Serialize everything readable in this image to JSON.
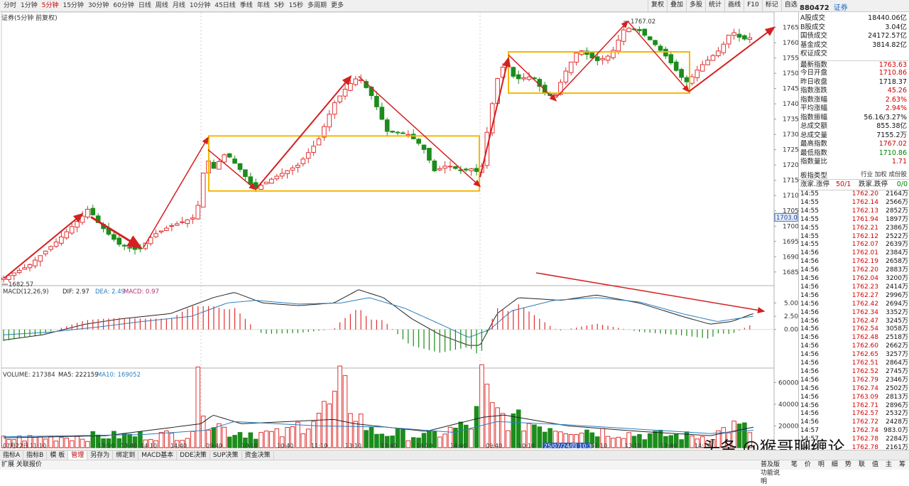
{
  "toolbar": {
    "periods": [
      "分时",
      "1分钟",
      "5分钟",
      "15分钟",
      "30分钟",
      "60分钟",
      "日线",
      "周线",
      "月线",
      "10分钟",
      "45日线",
      "季线",
      "年线",
      "5秒",
      "15秒",
      "多周期",
      "更多"
    ],
    "active_period": "5分钟",
    "tools": [
      "复权",
      "叠加",
      "多股",
      "统计",
      "画线",
      "F10",
      "标记",
      "自选"
    ],
    "subtitle": "证券(5分钟 前复权)"
  },
  "stock": {
    "code": "880472",
    "name": "证券"
  },
  "info": [
    {
      "k": "A股成交",
      "v": "18440.06亿",
      "c": "normal"
    },
    {
      "k": "B股成交",
      "v": "3.04亿",
      "c": "normal"
    },
    {
      "k": "国债成交",
      "v": "24172.57亿",
      "c": "normal"
    },
    {
      "k": "基金成交",
      "v": "3814.82亿",
      "c": "normal"
    },
    {
      "k": "权证成交",
      "v": "",
      "c": "normal"
    },
    {
      "k": "最新指数",
      "v": "1763.63",
      "c": "red"
    },
    {
      "k": "今日开盘",
      "v": "1710.86",
      "c": "red"
    },
    {
      "k": "昨日收盘",
      "v": "1718.37",
      "c": "normal"
    },
    {
      "k": "指数涨跌",
      "v": "45.26",
      "c": "red"
    },
    {
      "k": "指数涨幅",
      "v": "2.63%",
      "c": "red"
    },
    {
      "k": "平均涨幅",
      "v": "2.94%",
      "c": "red"
    },
    {
      "k": "指数振幅",
      "v": "56.16/3.27%",
      "c": "normal"
    },
    {
      "k": "总成交额",
      "v": "855.38亿",
      "c": "normal"
    },
    {
      "k": "总成交量",
      "v": "7155.2万",
      "c": "normal"
    },
    {
      "k": "最高指数",
      "v": "1767.02",
      "c": "red"
    },
    {
      "k": "最低指数",
      "v": "1710.86",
      "c": "green"
    },
    {
      "k": "指数量比",
      "v": "1.71",
      "c": "red"
    }
  ],
  "band_type": {
    "label": "板指类型",
    "opts": "行业 加权 成份股"
  },
  "updown": {
    "up_label": "涨家.涨停",
    "up_value": "50/1",
    "down_label": "跌家.跌停",
    "down_value": "0/0"
  },
  "ticks": [
    [
      "14:55",
      "1762.20",
      "2164万"
    ],
    [
      "14:55",
      "1762.14",
      "2566万"
    ],
    [
      "14:55",
      "1762.13",
      "2852万"
    ],
    [
      "14:55",
      "1761.94",
      "1897万"
    ],
    [
      "14:55",
      "1762.21",
      "2386万"
    ],
    [
      "14:55",
      "1762.12",
      "2522万"
    ],
    [
      "14:55",
      "1762.07",
      "2639万"
    ],
    [
      "14:56",
      "1762.01",
      "2384万"
    ],
    [
      "14:56",
      "1762.19",
      "2658万"
    ],
    [
      "14:56",
      "1762.20",
      "2883万"
    ],
    [
      "14:56",
      "1762.04",
      "3200万"
    ],
    [
      "14:56",
      "1762.23",
      "2414万"
    ],
    [
      "14:56",
      "1762.27",
      "2996万"
    ],
    [
      "14:56",
      "1762.42",
      "2694万"
    ],
    [
      "14:56",
      "1762.34",
      "3352万"
    ],
    [
      "14:56",
      "1762.47",
      "3245万"
    ],
    [
      "14:56",
      "1762.54",
      "3058万"
    ],
    [
      "14:56",
      "1762.48",
      "2518万"
    ],
    [
      "14:56",
      "1762.60",
      "2662万"
    ],
    [
      "14:56",
      "1762.65",
      "3257万"
    ],
    [
      "14:56",
      "1762.51",
      "2864万"
    ],
    [
      "14:56",
      "1762.52",
      "2745万"
    ],
    [
      "14:56",
      "1762.79",
      "2346万"
    ],
    [
      "14:56",
      "1762.74",
      "2502万"
    ],
    [
      "14:56",
      "1763.09",
      "2813万"
    ],
    [
      "14:56",
      "1762.71",
      "2896万"
    ],
    [
      "14:56",
      "1762.57",
      "2532万"
    ],
    [
      "14:56",
      "1762.72",
      "2428万"
    ],
    [
      "14:57",
      "1762.74",
      "983.0万"
    ],
    [
      "14:57",
      "1762.78",
      "2284万"
    ],
    [
      "14:57",
      "1762.78",
      "2161万"
    ]
  ],
  "price_axis": {
    "ticks": [
      "1765",
      "1760",
      "1755",
      "1750",
      "1745",
      "1740",
      "1735",
      "1730",
      "1725",
      "1720",
      "1715",
      "1710",
      "1705",
      "1700",
      "1695",
      "1690",
      "1685"
    ],
    "current_label": "1703.0"
  },
  "annotations": {
    "high_label": "1767.02",
    "low_label": "1682.57"
  },
  "macd": {
    "header_name": "MACD(12,26,9)",
    "dif": "DIF: 2.97",
    "dea": "DEA: 2.49",
    "macd": "MACD: 0.97",
    "axis": [
      "5.00",
      "2.50",
      "0.00"
    ]
  },
  "volume": {
    "header_name": "VOLUME: 217384",
    "ma5": "MA5: 222159",
    "ma10": "MA10: 169052",
    "axis": [
      "60000",
      "40000",
      "20000"
    ]
  },
  "time_axis": [
    "07月22日",
    "11:10",
    "13:10",
    "13:40",
    "14:10",
    "14:40",
    "09:40",
    "10:10",
    "10:40",
    "11:10",
    "13:10",
    "13:40",
    "14:10",
    "14:40",
    "09:40",
    "10:10",
    "25/07/24/四 10:30",
    "11:10",
    "13:10",
    "13:40",
    "14:10"
  ],
  "bottom_tabs": [
    "指标A",
    "指标B",
    "模 板",
    "管理",
    "另存为",
    "绑定到",
    "MACD基本",
    "DDE决策",
    "SUP决策",
    "资金决策"
  ],
  "active_tab": "管理",
  "status": {
    "left": "扩展   关联报价",
    "right": [
      "普及版功能说明",
      "笔",
      "价",
      "明",
      "细",
      "势",
      "联",
      "值",
      "主",
      "筹"
    ]
  },
  "watermark": "头条 @猴哥聊缠论",
  "colors": {
    "up": "#e03030",
    "down": "#1c8c1c",
    "box": "#f5b800",
    "arrow": "#d42020",
    "dif": "#222222",
    "dea": "#2a7fc0"
  }
}
